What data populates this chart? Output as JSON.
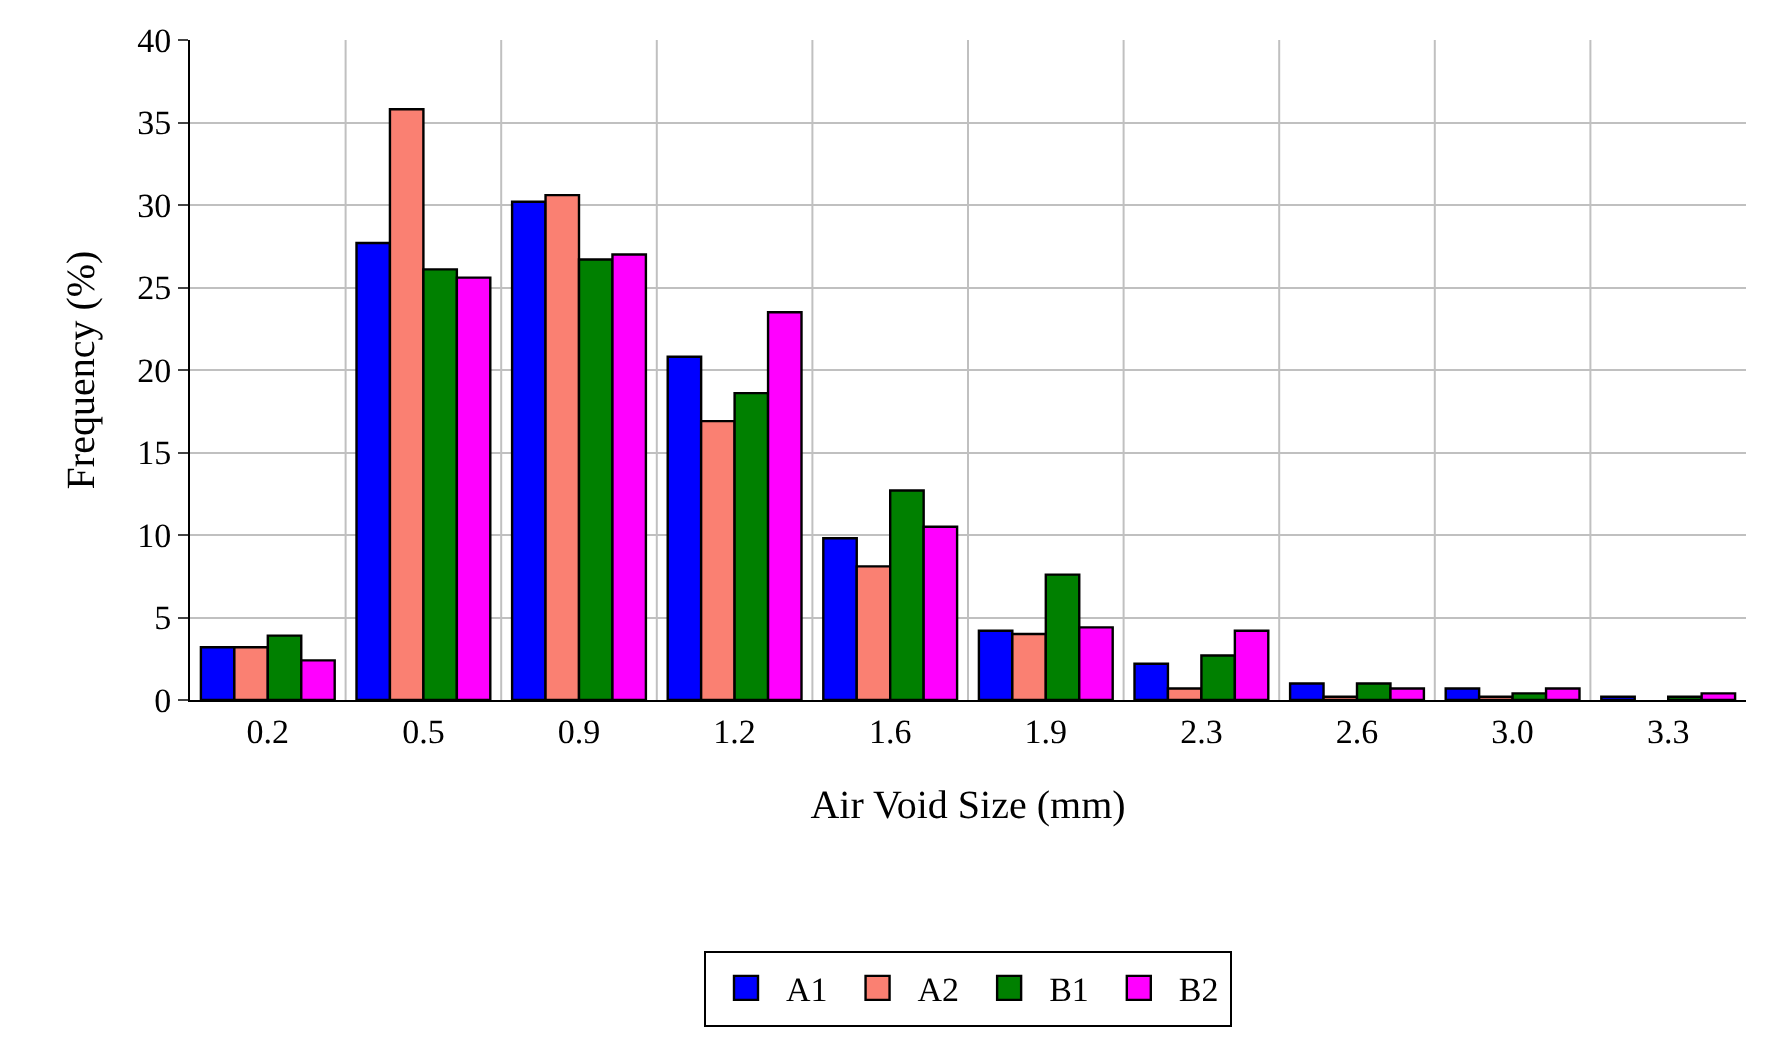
{
  "chart_data": {
    "type": "bar",
    "xlabel": "Air Void Size (mm)",
    "ylabel": "Frequency (%)",
    "categories": [
      "0.2",
      "0.5",
      "0.9",
      "1.2",
      "1.6",
      "1.9",
      "2.3",
      "2.6",
      "3.0",
      "3.3"
    ],
    "series": [
      {
        "name": "A1",
        "color": "#0000ff",
        "values": [
          3.2,
          27.7,
          30.2,
          20.8,
          9.8,
          4.2,
          2.2,
          1.0,
          0.7,
          0.2
        ]
      },
      {
        "name": "A2",
        "color": "#fa8072",
        "values": [
          3.2,
          35.8,
          30.6,
          16.9,
          8.1,
          4.0,
          0.7,
          0.2,
          0.2,
          null
        ]
      },
      {
        "name": "B1",
        "color": "#008000",
        "values": [
          3.9,
          26.1,
          26.7,
          18.6,
          12.7,
          7.6,
          2.7,
          1.0,
          0.4,
          0.2
        ]
      },
      {
        "name": "B2",
        "color": "#ff00ff",
        "values": [
          2.4,
          25.6,
          27.0,
          23.5,
          10.5,
          4.4,
          4.2,
          0.7,
          0.7,
          0.4
        ]
      }
    ],
    "ylim": [
      0,
      40
    ],
    "yticks": [
      0,
      5,
      10,
      15,
      20,
      25,
      30,
      35,
      40
    ],
    "grid": true,
    "legend": "bottom"
  }
}
